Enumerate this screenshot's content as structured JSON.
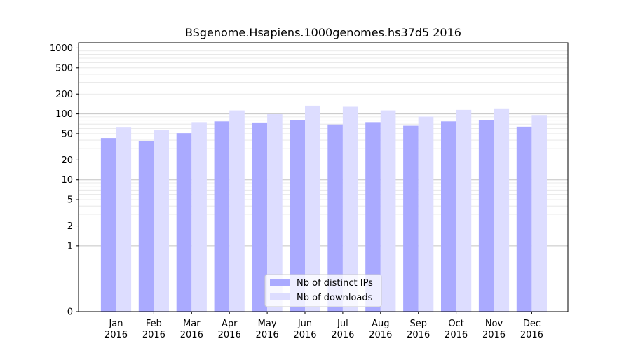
{
  "chart_data": {
    "type": "bar",
    "title": "BSgenome.Hsapiens.1000genomes.hs37d5 2016",
    "xlabel": "",
    "ylabel": "",
    "y_scale": "symlog",
    "ylim": [
      0,
      1200
    ],
    "y_ticks": [
      0,
      1,
      2,
      5,
      10,
      20,
      50,
      100,
      200,
      500,
      1000
    ],
    "y_tick_labels": [
      "0",
      "1",
      "2",
      "5",
      "10",
      "20",
      "50",
      "100",
      "200",
      "500",
      "1000"
    ],
    "categories": [
      [
        "Jan",
        "2016"
      ],
      [
        "Feb",
        "2016"
      ],
      [
        "Mar",
        "2016"
      ],
      [
        "Apr",
        "2016"
      ],
      [
        "May",
        "2016"
      ],
      [
        "Jun",
        "2016"
      ],
      [
        "Jul",
        "2016"
      ],
      [
        "Aug",
        "2016"
      ],
      [
        "Sep",
        "2016"
      ],
      [
        "Oct",
        "2016"
      ],
      [
        "Nov",
        "2016"
      ],
      [
        "Dec",
        "2016"
      ]
    ],
    "series": [
      {
        "name": "Nb of distinct IPs",
        "color": "#aaaaff",
        "values": [
          43,
          39,
          51,
          77,
          74,
          81,
          69,
          75,
          66,
          77,
          81,
          64
        ]
      },
      {
        "name": "Nb of downloads",
        "color": "#ddddff",
        "values": [
          62,
          57,
          75,
          113,
          99,
          133,
          128,
          113,
          91,
          115,
          121,
          96
        ]
      }
    ],
    "grid": true,
    "legend_position": "bottom-center"
  }
}
